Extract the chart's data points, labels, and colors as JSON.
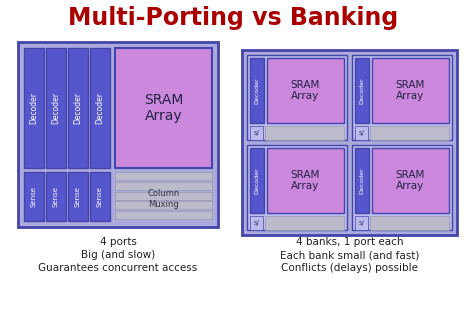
{
  "title": "Multi-Porting vs Banking",
  "title_color": "#aa0000",
  "bg_color": "#ffffff",
  "left_caption": [
    "4 ports",
    "Big (and slow)",
    "Guarantees concurrent access"
  ],
  "right_caption": [
    "4 banks, 1 port each",
    "Each bank small (and fast)",
    "Conflicts (delays) possible"
  ],
  "outer_border_color": "#4444aa",
  "outer_fill": "#aaaadd",
  "decoder_color": "#5555cc",
  "decoder_text_color": "#ffffff",
  "sram_color": "#cc88dd",
  "sram_text_color": "#222244",
  "sense_color": "#5555cc",
  "sense_text_color": "#ffffff",
  "column_mux_color": "#bbbbcc",
  "column_mux_text_color": "#333344",
  "bank_bg_color": "#aaaadd",
  "bank_fill": "#bbbbee",
  "sense_bar_color": "#bbbbcc",
  "sense_label_color": "#333366"
}
